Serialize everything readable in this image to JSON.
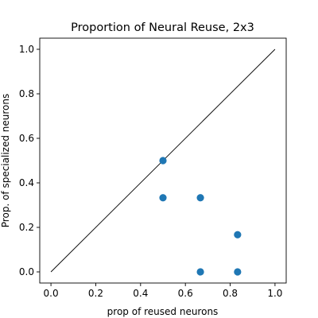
{
  "chart_data": {
    "type": "scatter",
    "title": "Proportion of Neural Reuse, 2x3",
    "xlabel": "prop of reused neurons",
    "ylabel": "Prop. of specialized neurons",
    "xlim": [
      -0.05,
      1.05
    ],
    "ylim": [
      -0.05,
      1.05
    ],
    "xticks": [
      0.0,
      0.2,
      0.4,
      0.6,
      0.8,
      1.0
    ],
    "yticks": [
      0.0,
      0.2,
      0.4,
      0.6,
      0.8,
      1.0
    ],
    "xtick_labels": [
      "0.0",
      "0.2",
      "0.4",
      "0.6",
      "0.8",
      "1.0"
    ],
    "ytick_labels": [
      "0.0",
      "0.2",
      "0.4",
      "0.6",
      "0.8",
      "1.0"
    ],
    "grid": false,
    "marker_color": "#1f77b4",
    "reference_line": {
      "from": [
        0.0,
        0.0
      ],
      "to": [
        1.0,
        1.0
      ],
      "color": "#000000"
    },
    "points": [
      {
        "x": 0.5,
        "y": 0.5
      },
      {
        "x": 0.5,
        "y": 0.333
      },
      {
        "x": 0.667,
        "y": 0.333
      },
      {
        "x": 0.833,
        "y": 0.167
      },
      {
        "x": 0.667,
        "y": 0.0
      },
      {
        "x": 0.833,
        "y": 0.0
      }
    ]
  }
}
